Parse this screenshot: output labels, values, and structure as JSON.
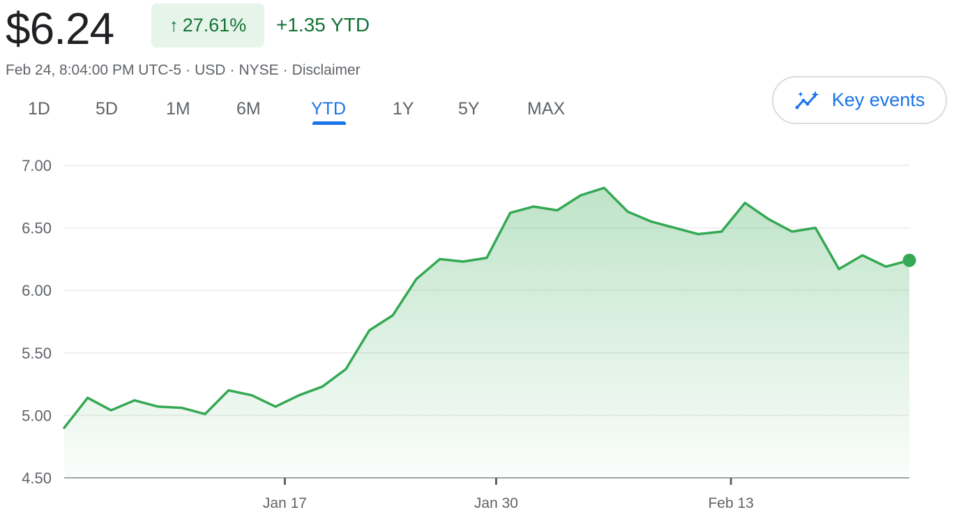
{
  "quote": {
    "price": "$6.24",
    "pct_change": "27.61%",
    "abs_change": "+1.35 YTD",
    "timestamp": "Feb 24, 8:04:00 PM UTC-5",
    "currency": "USD",
    "exchange": "NYSE",
    "disclaimer": "Disclaimer"
  },
  "tabs": [
    {
      "label": "1D",
      "active": false
    },
    {
      "label": "5D",
      "active": false
    },
    {
      "label": "1M",
      "active": false
    },
    {
      "label": "6M",
      "active": false
    },
    {
      "label": "YTD",
      "active": true
    },
    {
      "label": "1Y",
      "active": false
    },
    {
      "label": "5Y",
      "active": false
    },
    {
      "label": "MAX",
      "active": false
    }
  ],
  "key_events": {
    "label": "Key events",
    "icon": "sparkle-trend-icon"
  },
  "colors": {
    "positive": "#137333",
    "line": "#34a853",
    "accent": "#1a73e8"
  },
  "chart_data": {
    "type": "area",
    "ylim": [
      4.5,
      7.0
    ],
    "yticks": [
      "7.00",
      "6.50",
      "6.00",
      "5.50",
      "5.00",
      "4.50"
    ],
    "xticks": [
      "Jan 17",
      "Jan 30",
      "Feb 13"
    ],
    "grid": true,
    "series": [
      {
        "values": [
          4.9,
          5.14,
          5.04,
          5.12,
          5.07,
          5.06,
          5.01,
          5.2,
          5.16,
          5.07,
          5.16,
          5.23,
          5.37,
          5.68,
          5.8,
          6.09,
          6.25,
          6.23,
          6.26,
          6.62,
          6.67,
          6.64,
          6.76,
          6.82,
          6.63,
          6.55,
          6.5,
          6.45,
          6.47,
          6.7,
          6.57,
          6.47,
          6.5,
          6.17,
          6.28,
          6.19,
          6.24
        ]
      }
    ]
  }
}
